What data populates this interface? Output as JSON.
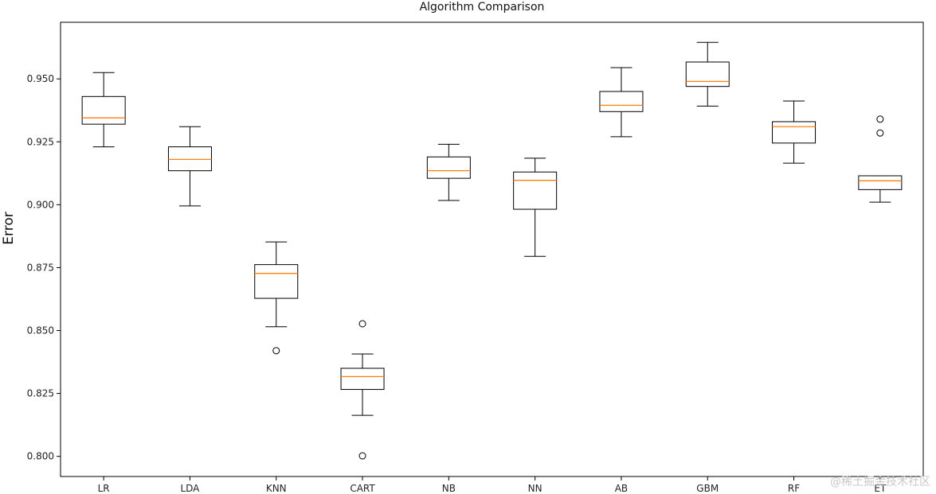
{
  "chart_data": {
    "type": "boxplot",
    "title": "Algorithm Comparison",
    "xlabel": "",
    "ylabel": "Error",
    "ylim": [
      0.792,
      0.9725
    ],
    "yticks": [
      0.8,
      0.825,
      0.85,
      0.875,
      0.9,
      0.925,
      0.95
    ],
    "ytick_labels": [
      "0.800",
      "0.825",
      "0.850",
      "0.875",
      "0.900",
      "0.925",
      "0.950"
    ],
    "grid": false,
    "colors": {
      "box": "#000000",
      "median": "#ff7f0e",
      "axes": "#000000"
    },
    "categories": [
      "LR",
      "LDA",
      "KNN",
      "CART",
      "NB",
      "NN",
      "AB",
      "GBM",
      "RF",
      "ET"
    ],
    "boxes": [
      {
        "name": "LR",
        "whislo": 0.923,
        "q1": 0.932,
        "med": 0.9345,
        "q3": 0.943,
        "whishi": 0.9525,
        "fliers": []
      },
      {
        "name": "LDA",
        "whislo": 0.8995,
        "q1": 0.9135,
        "med": 0.918,
        "q3": 0.923,
        "whishi": 0.931,
        "fliers": []
      },
      {
        "name": "KNN",
        "whislo": 0.8515,
        "q1": 0.8628,
        "med": 0.8727,
        "q3": 0.8762,
        "whishi": 0.8852,
        "fliers": [
          0.842
        ]
      },
      {
        "name": "CART",
        "whislo": 0.8163,
        "q1": 0.8266,
        "med": 0.8317,
        "q3": 0.835,
        "whishi": 0.8407,
        "fliers": [
          0.8527,
          0.8002
        ]
      },
      {
        "name": "NB",
        "whislo": 0.9017,
        "q1": 0.9105,
        "med": 0.9135,
        "q3": 0.919,
        "whishi": 0.924,
        "fliers": []
      },
      {
        "name": "NN",
        "whislo": 0.8795,
        "q1": 0.8982,
        "med": 0.9097,
        "q3": 0.913,
        "whishi": 0.9185,
        "fliers": []
      },
      {
        "name": "AB",
        "whislo": 0.927,
        "q1": 0.937,
        "med": 0.9395,
        "q3": 0.945,
        "whishi": 0.9545,
        "fliers": []
      },
      {
        "name": "GBM",
        "whislo": 0.9392,
        "q1": 0.947,
        "med": 0.949,
        "q3": 0.9567,
        "whishi": 0.9645,
        "fliers": []
      },
      {
        "name": "RF",
        "whislo": 0.9165,
        "q1": 0.9245,
        "med": 0.931,
        "q3": 0.933,
        "whishi": 0.9412,
        "fliers": []
      },
      {
        "name": "ET",
        "whislo": 0.901,
        "q1": 0.906,
        "med": 0.9095,
        "q3": 0.9115,
        "whishi": 0.9115,
        "fliers": [
          0.934,
          0.9285
        ]
      }
    ]
  },
  "watermark": "@稀土掘金技术社区"
}
